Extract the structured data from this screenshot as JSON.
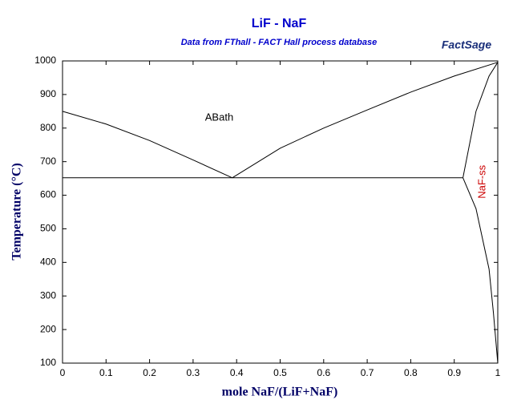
{
  "chart_data": {
    "type": "line",
    "title": "LiF - NaF",
    "subtitle": "Data from FThall - FACT Hall process database",
    "logo": "FactSage",
    "x_label": "mole NaF/(LiF+NaF)",
    "y_label": "Temperature (°C)",
    "xlim": [
      0,
      1
    ],
    "ylim": [
      100,
      1000
    ],
    "xticks": [
      0,
      0.1,
      0.2,
      0.3,
      0.4,
      0.5,
      0.6,
      0.7,
      0.8,
      0.9,
      1
    ],
    "yticks": [
      100,
      200,
      300,
      400,
      500,
      600,
      700,
      800,
      900,
      1000
    ],
    "series": [
      {
        "name": "liquidus-LiF",
        "color": "#000000",
        "x": [
          0,
          0.1,
          0.2,
          0.3,
          0.39
        ],
        "values": [
          850,
          812,
          763,
          705,
          652
        ]
      },
      {
        "name": "liquidus-NaF",
        "color": "#000000",
        "x": [
          0.39,
          0.5,
          0.6,
          0.7,
          0.8,
          0.9,
          1
        ],
        "values": [
          652,
          740,
          800,
          854,
          907,
          955,
          996
        ]
      },
      {
        "name": "eutectic",
        "color": "#000000",
        "x": [
          0,
          0.92
        ],
        "values": [
          652,
          652
        ]
      },
      {
        "name": "solidus",
        "color": "#000000",
        "x": [
          0.92,
          0.95,
          0.98,
          1
        ],
        "values": [
          652,
          850,
          955,
          996
        ]
      },
      {
        "name": "solvus",
        "color": "#000000",
        "x": [
          0.92,
          0.95,
          0.98,
          0.99,
          1
        ],
        "values": [
          652,
          560,
          380,
          250,
          100
        ]
      }
    ],
    "annotations": [
      {
        "text": "ABath",
        "x": 0.36,
        "y": 830,
        "color": "#000000",
        "rotate": 0
      },
      {
        "text": "NaF-ss",
        "x": 0.965,
        "y": 640,
        "color": "#cc0000",
        "rotate": -90
      }
    ]
  }
}
